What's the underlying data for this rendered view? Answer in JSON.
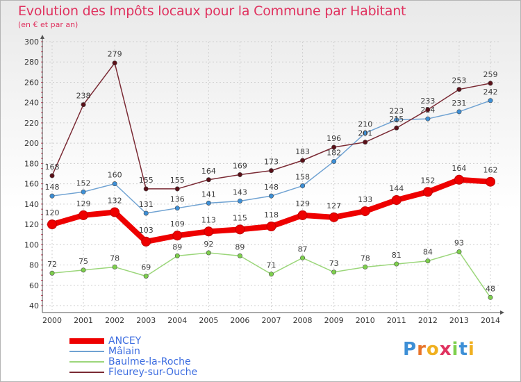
{
  "title": "Evolution des Impôts locaux pour la Commune par Habitant",
  "subtitle": "(en € et par an)",
  "brand": "Proxiti",
  "colors": {
    "title": "#e0325f",
    "legend_text": "#3d6de0",
    "grid": "#cfcfcf",
    "axis": "#555555"
  },
  "chart_data": {
    "type": "line",
    "title": "Evolution des Impôts locaux pour la Commune par Habitant",
    "subtitle": "(en € et par an)",
    "xlabel": "",
    "ylabel": "",
    "ylim": [
      40,
      300
    ],
    "yticks": [
      40,
      60,
      80,
      100,
      120,
      140,
      160,
      180,
      200,
      220,
      240,
      260,
      280,
      300
    ],
    "grid": true,
    "legend_position": "bottom-left",
    "categories": [
      "2000",
      "2001",
      "2002",
      "2003",
      "2004",
      "2005",
      "2006",
      "2007",
      "2008",
      "2009",
      "2010",
      "2011",
      "2012",
      "2013",
      "2014"
    ],
    "series": [
      {
        "name": "ANCEY",
        "color": "#ee0000",
        "marker": "#ee0000",
        "bold": true,
        "values": [
          120,
          129,
          132,
          103,
          109,
          113,
          115,
          118,
          129,
          127,
          133,
          144,
          152,
          164,
          162
        ]
      },
      {
        "name": "Mâlain",
        "color": "#6fa2d2",
        "marker": "#3d8fd6",
        "bold": false,
        "values": [
          148,
          152,
          160,
          131,
          136,
          141,
          143,
          148,
          158,
          182,
          210,
          223,
          224,
          231,
          242
        ]
      },
      {
        "name": "Baulme-la-Roche",
        "color": "#9bd67a",
        "marker": "#7ed04d",
        "bold": false,
        "values": [
          72,
          75,
          78,
          69,
          89,
          92,
          89,
          71,
          87,
          73,
          78,
          81,
          84,
          93,
          48
        ]
      },
      {
        "name": "Fleurey-sur-Ouche",
        "color": "#7a2a34",
        "marker": "#5a1018",
        "bold": false,
        "values": [
          168,
          238,
          279,
          155,
          155,
          164,
          169,
          173,
          183,
          196,
          201,
          215,
          233,
          253,
          259
        ]
      }
    ]
  }
}
